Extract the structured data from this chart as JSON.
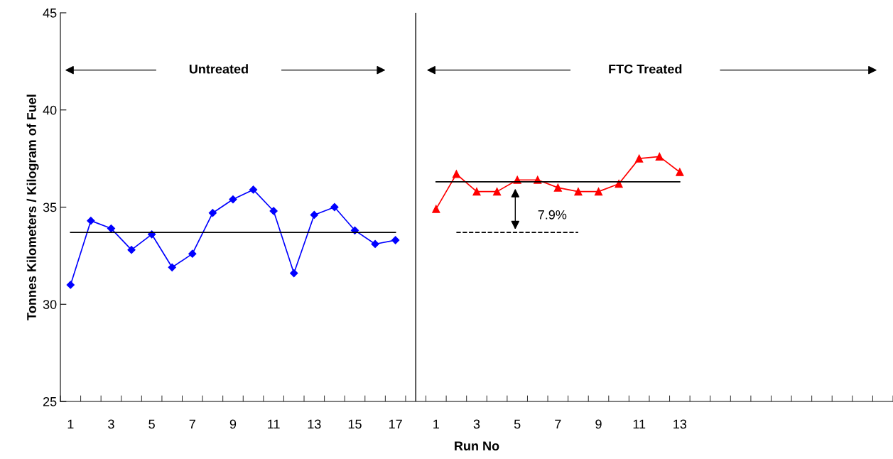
{
  "chart_data": {
    "type": "line",
    "xlabel": "Run No",
    "ylabel": "Tonnes Kilometers / Kilogram of Fuel",
    "categories": [
      "1",
      null,
      "3",
      null,
      "5",
      null,
      "7",
      null,
      "9",
      null,
      "11",
      null,
      "13",
      null,
      "15",
      null,
      "17",
      null,
      "1",
      null,
      "3",
      null,
      "5",
      null,
      "7",
      null,
      "9",
      null,
      "11",
      null,
      "13",
      null,
      null,
      null,
      null,
      null,
      null,
      null,
      null,
      null,
      null
    ],
    "ylim": [
      25,
      45
    ],
    "yticks": [
      25,
      30,
      35,
      40,
      45
    ],
    "grid": false,
    "legend": false,
    "series": [
      {
        "color": "#0000ff",
        "marker": "diamond",
        "values": [
          31.0,
          34.3,
          33.9,
          32.8,
          33.6,
          31.9,
          32.6,
          34.7,
          35.4,
          35.9,
          34.8,
          31.6,
          34.6,
          35.0,
          33.8,
          33.1,
          33.3,
          null,
          null,
          null,
          null,
          null,
          null,
          null,
          null,
          null,
          null,
          null,
          null,
          null,
          null,
          null,
          null,
          null,
          null,
          null,
          null,
          null,
          null,
          null,
          null
        ]
      },
      {
        "color": "#ff0000",
        "marker": "triangle",
        "values": [
          null,
          null,
          null,
          null,
          null,
          null,
          null,
          null,
          null,
          null,
          null,
          null,
          null,
          null,
          null,
          null,
          null,
          null,
          34.9,
          36.7,
          35.8,
          35.8,
          36.4,
          36.4,
          36.0,
          35.8,
          35.8,
          36.2,
          37.5,
          37.6,
          36.8,
          null,
          null,
          null,
          null,
          null,
          null,
          null,
          null,
          null,
          null
        ]
      },
      {
        "color": "#000000",
        "marker": "none",
        "values": [
          33.7,
          33.7,
          33.7,
          33.7,
          33.7,
          33.7,
          33.7,
          33.7,
          33.7,
          33.7,
          33.7,
          33.7,
          33.7,
          33.7,
          33.7,
          33.7,
          33.7,
          null,
          null,
          null,
          null,
          null,
          null,
          null,
          null,
          null,
          null,
          null,
          null,
          null,
          null,
          null,
          null,
          null,
          null,
          null,
          null,
          null,
          null,
          null,
          null
        ]
      },
      {
        "color": "#000000",
        "marker": "none",
        "values": [
          null,
          null,
          null,
          null,
          null,
          null,
          null,
          null,
          null,
          null,
          null,
          null,
          null,
          null,
          null,
          null,
          null,
          null,
          36.3,
          36.3,
          36.3,
          36.3,
          36.3,
          36.3,
          36.3,
          36.3,
          36.3,
          36.3,
          36.3,
          36.3,
          36.3,
          null,
          null,
          null,
          null,
          null,
          null,
          null,
          null,
          null,
          null
        ]
      },
      {
        "color": "#000000",
        "marker": "none",
        "line_style": "dashed",
        "values": [
          null,
          null,
          null,
          null,
          null,
          null,
          null,
          null,
          null,
          null,
          null,
          null,
          null,
          null,
          null,
          null,
          null,
          null,
          null,
          33.7,
          33.7,
          33.7,
          33.7,
          33.7,
          33.7,
          33.7,
          null,
          null,
          null,
          null,
          null,
          null,
          null,
          null,
          null,
          null,
          null,
          null,
          null,
          null,
          null
        ]
      }
    ],
    "annotations": [
      "Untreated",
      "FTC Treated",
      "7.9%"
    ]
  }
}
